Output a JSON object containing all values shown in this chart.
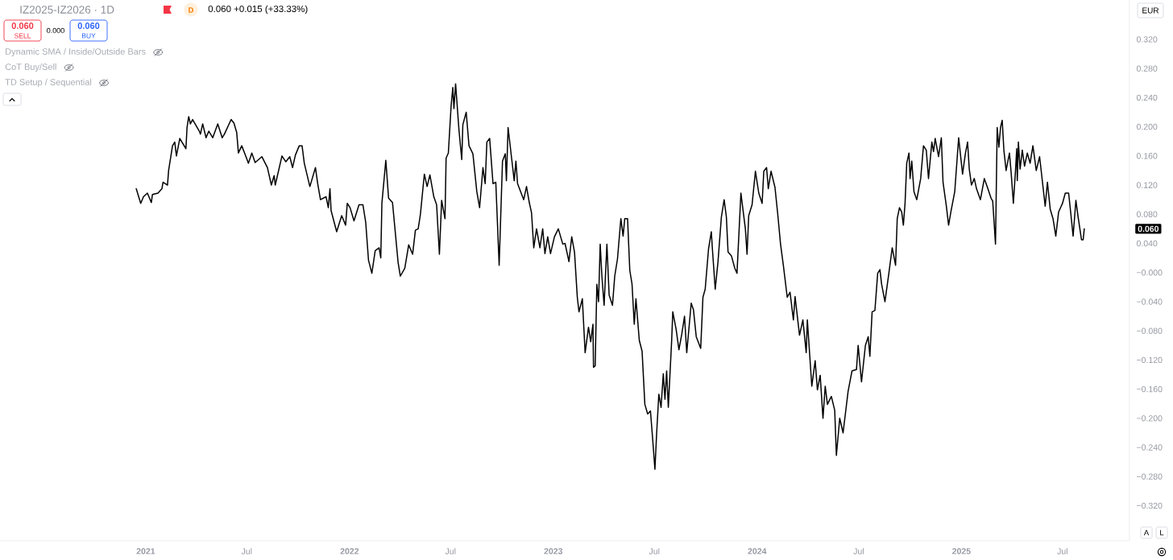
{
  "chart_data": {
    "type": "line",
    "title": "IZ2025-IZ2026 · 1D",
    "subtitle": "0.060 +0.015 (+33.33%)",
    "annotations": [
      "0.060",
      "SELL",
      "0.000",
      "0.060",
      "BUY",
      "Dynamic SMA / Inside/Outside Bars",
      "CoT Buy/Sell",
      "TD Setup / Sequential",
      "EUR",
      "A",
      "L",
      "D",
      "0.060"
    ],
    "xlim": [
      "2020-04-15",
      "2025-10-29"
    ],
    "xticks": [
      {
        "value": "2021-01-01",
        "label": "2021"
      },
      {
        "value": "2021-07-01",
        "label": "Jul"
      },
      {
        "value": "2022-01-01",
        "label": "2022"
      },
      {
        "value": "2022-07-01",
        "label": "Jul"
      },
      {
        "value": "2023-01-01",
        "label": "2023"
      },
      {
        "value": "2023-07-01",
        "label": "Jul"
      },
      {
        "value": "2024-01-01",
        "label": "2024"
      },
      {
        "value": "2024-07-01",
        "label": "Jul"
      },
      {
        "value": "2025-01-01",
        "label": "2025"
      },
      {
        "value": "2025-07-01",
        "label": "Jul"
      }
    ],
    "ylim": [
      -0.368,
      0.374
    ],
    "yticks": [
      {
        "value": -0.32,
        "label": "−0.320"
      },
      {
        "value": -0.28,
        "label": "−0.280"
      },
      {
        "value": -0.24,
        "label": "−0.240"
      },
      {
        "value": -0.2,
        "label": "−0.200"
      },
      {
        "value": -0.16,
        "label": "−0.160"
      },
      {
        "value": -0.12,
        "label": "−0.120"
      },
      {
        "value": -0.08,
        "label": "−0.080"
      },
      {
        "value": -0.04,
        "label": "−0.040"
      },
      {
        "value": 0,
        "label": "−0.000"
      },
      {
        "value": 0.04,
        "label": "0.040"
      },
      {
        "value": 0.08,
        "label": "0.080"
      },
      {
        "value": 0.12,
        "label": "0.120"
      },
      {
        "value": 0.16,
        "label": "0.160"
      },
      {
        "value": 0.2,
        "label": "0.200"
      },
      {
        "value": 0.24,
        "label": "0.240"
      },
      {
        "value": 0.28,
        "label": "0.280"
      },
      {
        "value": 0.32,
        "label": "0.320"
      }
    ],
    "x": [
      "2020-12-15",
      "2020-12-23",
      "2020-12-28",
      "2021-01-04",
      "2021-01-11",
      "2021-01-13",
      "2021-01-23",
      "2021-01-30",
      "2021-02-01",
      "2021-02-09",
      "2021-02-11",
      "2021-02-18",
      "2021-02-22",
      "2021-02-25",
      "2021-03-03",
      "2021-03-14",
      "2021-03-16",
      "2021-03-19",
      "2021-03-22",
      "2021-03-26",
      "2021-04-07",
      "2021-04-09",
      "2021-04-13",
      "2021-04-19",
      "2021-04-24",
      "2021-05-01",
      "2021-05-10",
      "2021-05-18",
      "2021-05-22",
      "2021-06-03",
      "2021-06-08",
      "2021-06-13",
      "2021-06-16",
      "2021-06-22",
      "2021-06-29",
      "2021-07-04",
      "2021-07-10",
      "2021-07-16",
      "2021-07-28",
      "2021-08-07",
      "2021-08-14",
      "2021-08-19",
      "2021-08-21",
      "2021-09-02",
      "2021-09-09",
      "2021-09-16",
      "2021-09-21",
      "2021-09-26",
      "2021-10-03",
      "2021-10-08",
      "2021-10-12",
      "2021-10-22",
      "2021-10-27",
      "2021-11-01",
      "2021-11-05",
      "2021-11-10",
      "2021-11-20",
      "2021-11-24",
      "2021-11-27",
      "2021-11-29",
      "2021-12-09",
      "2021-12-18",
      "2021-12-25",
      "2021-12-28",
      "2022-01-02",
      "2022-01-09",
      "2022-01-18",
      "2022-01-25",
      "2022-01-30",
      "2022-02-04",
      "2022-02-10",
      "2022-02-16",
      "2022-02-23",
      "2022-02-26",
      "2022-02-28",
      "2022-03-07",
      "2022-03-12",
      "2022-03-19",
      "2022-03-29",
      "2022-04-02",
      "2022-04-10",
      "2022-04-17",
      "2022-04-24",
      "2022-04-29",
      "2022-05-04",
      "2022-05-08",
      "2022-05-15",
      "2022-05-20",
      "2022-05-25",
      "2022-06-01",
      "2022-06-06",
      "2022-06-11",
      "2022-06-15",
      "2022-06-21",
      "2022-06-23",
      "2022-06-27",
      "2022-07-02",
      "2022-07-05",
      "2022-07-07",
      "2022-07-10",
      "2022-07-16",
      "2022-07-21",
      "2022-07-23",
      "2022-07-29",
      "2022-08-03",
      "2022-08-10",
      "2022-08-17",
      "2022-08-22",
      "2022-08-28",
      "2022-09-01",
      "2022-09-04",
      "2022-09-09",
      "2022-09-15",
      "2022-09-20",
      "2022-09-26",
      "2022-10-02",
      "2022-10-07",
      "2022-10-09",
      "2022-10-12",
      "2022-10-18",
      "2022-10-23",
      "2022-10-26",
      "2022-10-29",
      "2022-11-09",
      "2022-11-14",
      "2022-11-19",
      "2022-11-23",
      "2022-11-27",
      "2022-12-02",
      "2022-12-08",
      "2022-12-13",
      "2022-12-17",
      "2022-12-22",
      "2022-12-27",
      "2023-01-03",
      "2023-01-10",
      "2023-01-18",
      "2023-01-22",
      "2023-01-29",
      "2023-02-03",
      "2023-02-08",
      "2023-02-13",
      "2023-02-16",
      "2023-02-22",
      "2023-02-27",
      "2023-03-05",
      "2023-03-09",
      "2023-03-13",
      "2023-03-14",
      "2023-03-17",
      "2023-03-20",
      "2023-03-23",
      "2023-03-26",
      "2023-03-29",
      "2023-04-02",
      "2023-04-07",
      "2023-04-11",
      "2023-04-17",
      "2023-04-21",
      "2023-04-26",
      "2023-05-02",
      "2023-05-06",
      "2023-05-09",
      "2023-05-14",
      "2023-05-18",
      "2023-05-22",
      "2023-05-26",
      "2023-05-29",
      "2023-06-04",
      "2023-06-09",
      "2023-06-14",
      "2023-06-19",
      "2023-06-24",
      "2023-06-28",
      "2023-07-02",
      "2023-07-05",
      "2023-07-09",
      "2023-07-13",
      "2023-07-17",
      "2023-07-20",
      "2023-07-23",
      "2023-07-26",
      "2023-08-01",
      "2023-08-03",
      "2023-08-09",
      "2023-08-14",
      "2023-08-19",
      "2023-08-24",
      "2023-08-28",
      "2023-09-05",
      "2023-09-09",
      "2023-09-14",
      "2023-09-22",
      "2023-09-26",
      "2023-09-30",
      "2023-10-06",
      "2023-10-11",
      "2023-10-13",
      "2023-10-18",
      "2023-10-23",
      "2023-10-29",
      "2023-11-03",
      "2023-11-07",
      "2023-11-10",
      "2023-11-16",
      "2023-11-22",
      "2023-11-26",
      "2023-12-03",
      "2023-12-11",
      "2023-12-14",
      "2023-12-17",
      "2023-12-23",
      "2023-12-29",
      "2024-01-04",
      "2024-01-10",
      "2024-01-13",
      "2024-01-18",
      "2024-01-21",
      "2024-01-26",
      "2024-02-02",
      "2024-02-07",
      "2024-02-12",
      "2024-02-17",
      "2024-02-24",
      "2024-02-29",
      "2024-03-06",
      "2024-03-09",
      "2024-03-17",
      "2024-03-23",
      "2024-03-29",
      "2024-03-31",
      "2024-04-08",
      "2024-04-14",
      "2024-04-18",
      "2024-04-23",
      "2024-04-28",
      "2024-05-02",
      "2024-05-06",
      "2024-05-13",
      "2024-05-19",
      "2024-05-22",
      "2024-05-28",
      "2024-06-03",
      "2024-06-12",
      "2024-06-19",
      "2024-06-27",
      "2024-06-30",
      "2024-07-06",
      "2024-07-13",
      "2024-07-18",
      "2024-07-21",
      "2024-07-25",
      "2024-07-30",
      "2024-08-04",
      "2024-08-08",
      "2024-08-11",
      "2024-08-17",
      "2024-08-24",
      "2024-08-30",
      "2024-09-05",
      "2024-09-08",
      "2024-09-12",
      "2024-09-16",
      "2024-09-19",
      "2024-09-22",
      "2024-09-25",
      "2024-09-29",
      "2024-10-01",
      "2024-10-04",
      "2024-10-08",
      "2024-10-13",
      "2024-10-20",
      "2024-10-25",
      "2024-10-30",
      "2024-11-03",
      "2024-11-09",
      "2024-11-12",
      "2024-11-15",
      "2024-11-21",
      "2024-11-26",
      "2024-11-29",
      "2024-12-05",
      "2024-12-09",
      "2024-12-13",
      "2024-12-20",
      "2024-12-27",
      "2025-01-03",
      "2025-01-08",
      "2025-01-12",
      "2025-01-15",
      "2025-01-19",
      "2025-01-24",
      "2025-01-28",
      "2025-02-04",
      "2025-02-11",
      "2025-02-17",
      "2025-02-23",
      "2025-02-26",
      "2025-03-03",
      "2025-03-06",
      "2025-03-09",
      "2025-03-12",
      "2025-03-15",
      "2025-03-18",
      "2025-03-22",
      "2025-03-28",
      "2025-03-31",
      "2025-04-04",
      "2025-04-08",
      "2025-04-10",
      "2025-04-11",
      "2025-04-13",
      "2025-04-16",
      "2025-04-20",
      "2025-04-24",
      "2025-04-29",
      "2025-05-04",
      "2025-05-09",
      "2025-05-15",
      "2025-05-21",
      "2025-05-31",
      "2025-06-04",
      "2025-06-09",
      "2025-06-14",
      "2025-06-19",
      "2025-06-24",
      "2025-07-01",
      "2025-07-06",
      "2025-07-12",
      "2025-07-16",
      "2025-07-20",
      "2025-07-25",
      "2025-07-29",
      "2025-08-04",
      "2025-08-07",
      "2025-08-09"
    ],
    "series": [
      {
        "color": "#000000",
        "values": [
          0.115,
          0.095,
          0.104,
          0.109,
          0.096,
          0.107,
          0.109,
          0.115,
          0.124,
          0.12,
          0.14,
          0.174,
          0.179,
          0.16,
          0.184,
          0.17,
          0.199,
          0.214,
          0.204,
          0.21,
          0.194,
          0.19,
          0.204,
          0.185,
          0.194,
          0.185,
          0.204,
          0.185,
          0.19,
          0.21,
          0.205,
          0.192,
          0.164,
          0.174,
          0.16,
          0.15,
          0.164,
          0.151,
          0.159,
          0.144,
          0.12,
          0.133,
          0.12,
          0.16,
          0.152,
          0.159,
          0.144,
          0.161,
          0.174,
          0.174,
          0.15,
          0.118,
          0.131,
          0.144,
          0.122,
          0.1,
          0.104,
          0.089,
          0.115,
          0.085,
          0.056,
          0.078,
          0.065,
          0.095,
          0.089,
          0.071,
          0.093,
          0.093,
          0.069,
          0.017,
          -0.001,
          0.03,
          0.034,
          0.02,
          0.095,
          0.154,
          0.102,
          0.096,
          0.014,
          -0.005,
          0.006,
          0.038,
          0.025,
          0.058,
          0.06,
          0.08,
          0.135,
          0.118,
          0.134,
          0.104,
          0.093,
          0.025,
          0.099,
          0.074,
          0.157,
          0.164,
          0.229,
          0.254,
          0.225,
          0.259,
          0.196,
          0.155,
          0.203,
          0.22,
          0.174,
          0.163,
          0.111,
          0.089,
          0.144,
          0.122,
          0.179,
          0.184,
          0.122,
          0.124,
          0.01,
          0.153,
          0.163,
          0.126,
          0.199,
          0.159,
          0.126,
          0.153,
          0.122,
          0.1,
          0.118,
          0.096,
          0.082,
          0.034,
          0.06,
          0.034,
          0.06,
          0.026,
          0.049,
          0.026,
          0.049,
          0.06,
          0.039,
          0.04,
          0.015,
          0.049,
          0.028,
          -0.034,
          -0.054,
          -0.036,
          -0.11,
          -0.075,
          -0.095,
          -0.071,
          -0.13,
          -0.128,
          -0.016,
          -0.04,
          0.039,
          -0.005,
          -0.045,
          0.039,
          -0.031,
          -0.045,
          -0.005,
          0.019,
          0.074,
          0.05,
          0.074,
          0.074,
          0.003,
          -0.016,
          -0.071,
          -0.036,
          -0.093,
          -0.108,
          -0.181,
          -0.194,
          -0.19,
          -0.229,
          -0.27,
          -0.222,
          -0.167,
          -0.185,
          -0.139,
          -0.174,
          -0.135,
          -0.185,
          -0.093,
          -0.054,
          -0.078,
          -0.106,
          -0.085,
          -0.06,
          -0.11,
          -0.042,
          -0.051,
          -0.088,
          -0.104,
          -0.034,
          -0.023,
          0.032,
          0.056,
          0.032,
          -0.023,
          0.015,
          0.076,
          0.1,
          0.076,
          0.028,
          0.023,
          0.006,
          -0.001,
          0.109,
          0.06,
          0.025,
          0.078,
          0.093,
          0.139,
          0.109,
          0.095,
          0.139,
          0.144,
          0.115,
          0.139,
          0.117,
          0.08,
          0.039,
          0.01,
          -0.034,
          -0.027,
          -0.065,
          -0.033,
          -0.086,
          -0.065,
          -0.11,
          -0.065,
          -0.156,
          -0.121,
          -0.161,
          -0.141,
          -0.2,
          -0.156,
          -0.181,
          -0.17,
          -0.189,
          -0.251,
          -0.2,
          -0.22,
          -0.163,
          -0.135,
          -0.133,
          -0.1,
          -0.15,
          -0.1,
          -0.088,
          -0.115,
          -0.054,
          -0.052,
          -0.001,
          0.004,
          -0.016,
          -0.04,
          -0.001,
          0.034,
          0.01,
          0.074,
          0.089,
          0.083,
          0.065,
          0.095,
          0.15,
          0.164,
          0.129,
          0.153,
          0.111,
          0.1,
          0.129,
          0.174,
          0.168,
          0.129,
          0.179,
          0.166,
          0.184,
          0.159,
          0.185,
          0.124,
          0.091,
          0.065,
          0.083,
          0.111,
          0.185,
          0.135,
          0.163,
          0.179,
          0.142,
          0.12,
          0.129,
          0.115,
          0.1,
          0.129,
          0.116,
          0.102,
          0.098,
          0.039,
          0.199,
          0.172,
          0.199,
          0.209,
          0.168,
          0.14,
          0.164,
          0.137,
          0.095,
          0.142,
          0.17,
          0.126,
          0.179,
          0.142,
          0.168,
          0.146,
          0.164,
          0.15,
          0.174,
          0.14,
          0.159,
          0.091,
          0.124,
          0.087,
          0.074,
          0.05,
          0.083,
          0.095,
          0.109,
          0.109,
          0.08,
          0.05,
          0.099,
          0.076,
          0.045,
          0.045,
          0.06
        ]
      }
    ]
  }
}
